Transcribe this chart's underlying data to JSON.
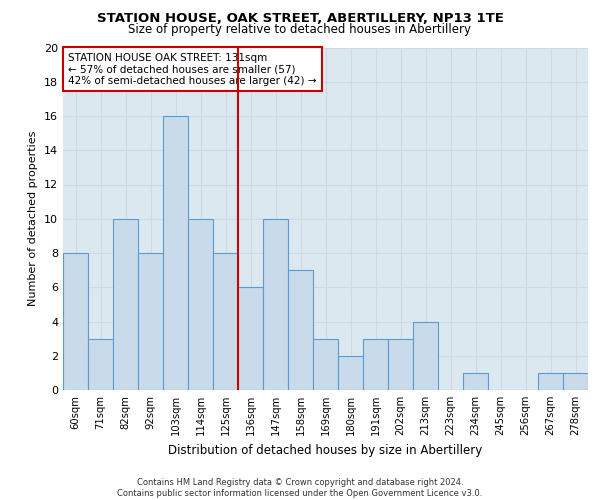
{
  "title1": "STATION HOUSE, OAK STREET, ABERTILLERY, NP13 1TE",
  "title2": "Size of property relative to detached houses in Abertillery",
  "xlabel": "Distribution of detached houses by size in Abertillery",
  "ylabel": "Number of detached properties",
  "categories": [
    "60sqm",
    "71sqm",
    "82sqm",
    "92sqm",
    "103sqm",
    "114sqm",
    "125sqm",
    "136sqm",
    "147sqm",
    "158sqm",
    "169sqm",
    "180sqm",
    "191sqm",
    "202sqm",
    "213sqm",
    "223sqm",
    "234sqm",
    "245sqm",
    "256sqm",
    "267sqm",
    "278sqm"
  ],
  "values": [
    8,
    3,
    10,
    8,
    16,
    10,
    8,
    6,
    10,
    7,
    3,
    2,
    3,
    3,
    4,
    0,
    1,
    0,
    0,
    1,
    1
  ],
  "bar_color": "#c9daea",
  "bar_edge_color": "#5b9bd5",
  "highlight_line_index": 6,
  "highlight_line_color": "#cc0000",
  "annotation_line1": "STATION HOUSE OAK STREET: 131sqm",
  "annotation_line2": "← 57% of detached houses are smaller (57)",
  "annotation_line3": "42% of semi-detached houses are larger (42) →",
  "annotation_box_color": "#cc0000",
  "ylim": [
    0,
    20
  ],
  "yticks": [
    0,
    2,
    4,
    6,
    8,
    10,
    12,
    14,
    16,
    18,
    20
  ],
  "grid_color": "#cdd9e5",
  "background_color": "#dce8f0",
  "footer_line1": "Contains HM Land Registry data © Crown copyright and database right 2024.",
  "footer_line2": "Contains public sector information licensed under the Open Government Licence v3.0."
}
